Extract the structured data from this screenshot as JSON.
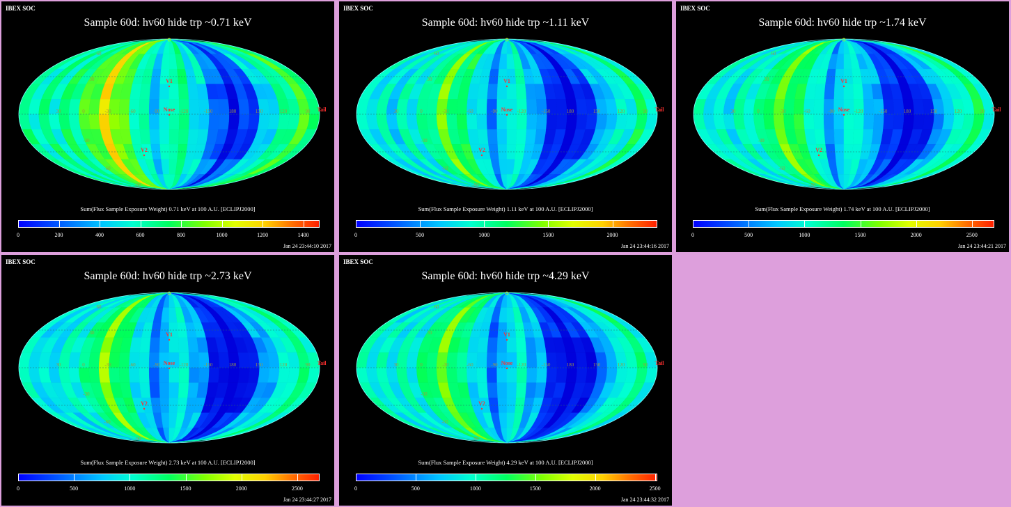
{
  "colors": {
    "background": "#dd9fdc",
    "panel_bg": "#000000",
    "grid_label": "#c8c800",
    "marker_label": "#ff3030"
  },
  "panels": [
    {
      "corner": "IBEX SOC",
      "title": "Sample 60d: hv60 hide trp ~0.71 keV",
      "caption": "Sum(Flux Sample Exposure Weight)  0.71 keV at 100 A.U. [ECLIPJ2000]",
      "ticks": [
        "0",
        "200",
        "400",
        "600",
        "800",
        "1000",
        "1200",
        "1400"
      ],
      "cbar_max": 1480,
      "timestamp": "Jan 24 23:44:10 2017",
      "variant": "low"
    },
    {
      "corner": "IBEX SOC",
      "title": "Sample 60d: hv60 hide trp ~1.11 keV",
      "caption": "Sum(Flux Sample Exposure Weight)  1.11 keV at 100 A.U. [ECLIPJ2000]",
      "ticks": [
        "0",
        "500",
        "1000",
        "1500",
        "2000"
      ],
      "cbar_max": 2350,
      "timestamp": "Jan 24 23:44:16 2017",
      "variant": "mid"
    },
    {
      "corner": "IBEX SOC",
      "title": "Sample 60d: hv60 hide trp ~1.74 keV",
      "caption": "Sum(Flux Sample Exposure Weight)  1.74 keV at 100 A.U. [ECLIPJ2000]",
      "ticks": [
        "0",
        "500",
        "1000",
        "1500",
        "2000",
        "2500"
      ],
      "cbar_max": 2700,
      "timestamp": "Jan 24 23:44:21 2017",
      "variant": "mid"
    },
    {
      "corner": "IBEX SOC",
      "title": "Sample 60d: hv60 hide trp ~2.73 keV",
      "caption": "Sum(Flux Sample Exposure Weight)  2.73 keV at 100 A.U. [ECLIPJ2000]",
      "ticks": [
        "0",
        "500",
        "1000",
        "1500",
        "2000",
        "2500"
      ],
      "cbar_max": 2700,
      "timestamp": "Jan 24 23:44:27 2017",
      "variant": "high"
    },
    {
      "corner": "IBEX SOC",
      "title": "Sample 60d: hv60 hide trp ~4.29 keV",
      "caption": "Sum(Flux Sample Exposure Weight)  4.29 keV at 100 A.U. [ECLIPJ2000]",
      "ticks": [
        "0",
        "500",
        "1000",
        "1500",
        "2000",
        "2500"
      ],
      "cbar_max": 2520,
      "timestamp": "Jan 24 23:44:32 2017",
      "variant": "high"
    }
  ],
  "map_labels": {
    "lon_labels": [
      "30",
      "0",
      "-30",
      "-60",
      "-90",
      "-120",
      "-150",
      "180",
      "150",
      "120",
      "90"
    ],
    "lat_labels": [
      "60",
      "30",
      "-30",
      "-60",
      "-90"
    ],
    "markers": [
      "V1",
      "Nose",
      "V2",
      "Tail"
    ]
  }
}
